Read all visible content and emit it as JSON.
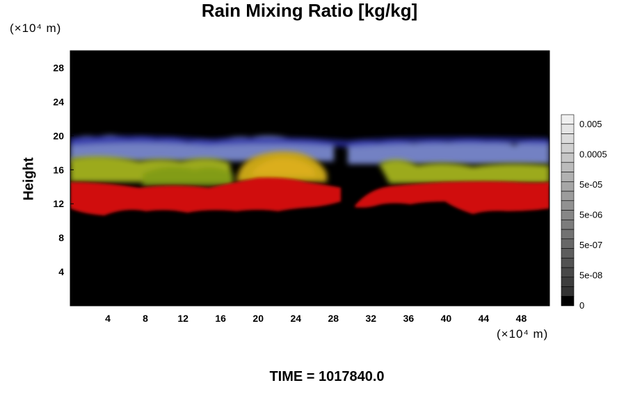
{
  "chart_data": {
    "type": "heatmap",
    "title": "Rain Mixing Ratio [kg/kg]",
    "ylabel": "Height",
    "xlabel": "",
    "x_unit": "(×10⁴ m)",
    "y_unit": "(×10⁴ m)",
    "xlim": [
      0,
      51
    ],
    "ylim": [
      0,
      30
    ],
    "x_ticks": [
      4,
      8,
      12,
      16,
      20,
      24,
      28,
      32,
      36,
      40,
      44,
      48
    ],
    "y_ticks": [
      4,
      8,
      12,
      16,
      20,
      24,
      28
    ],
    "colorbar": {
      "labels": [
        "0.005",
        "0.0005",
        "5e-05",
        "5e-06",
        "5e-07",
        "5e-08",
        "0"
      ],
      "levels": 20
    },
    "footer": "TIME = 1017840.0"
  }
}
